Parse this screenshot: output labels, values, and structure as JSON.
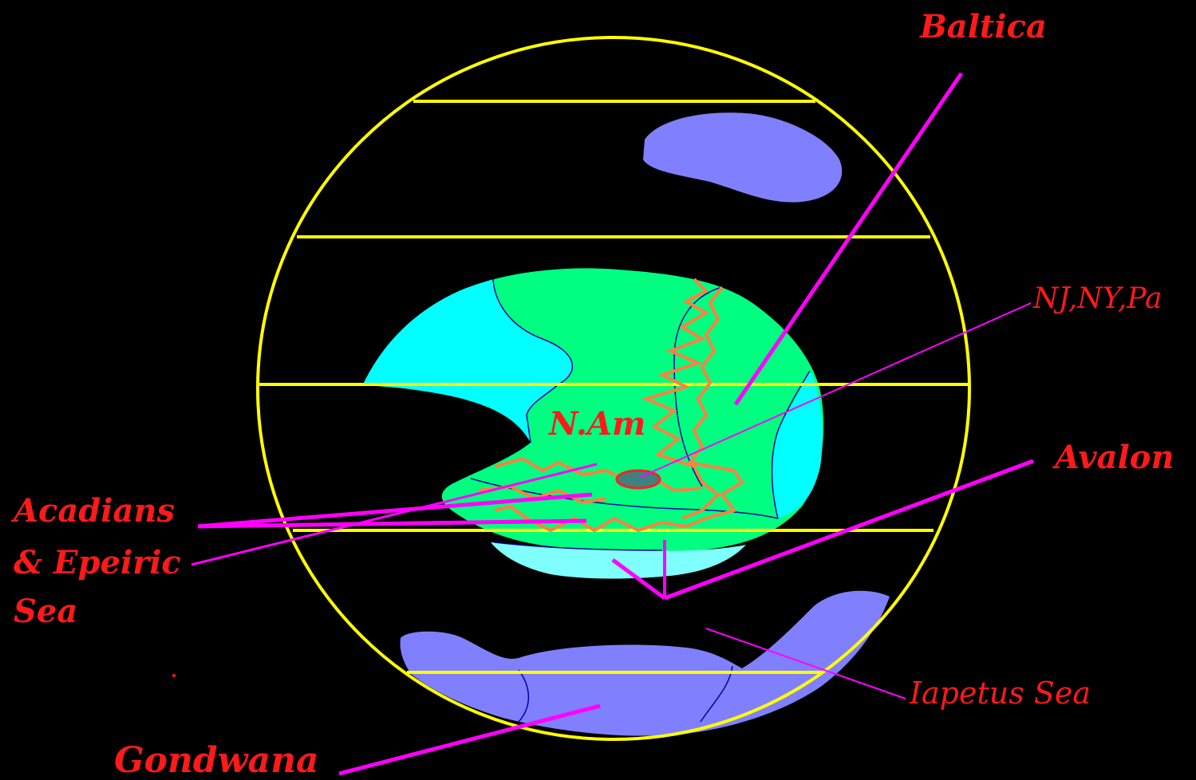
{
  "labels": {
    "baltica": "Baltica",
    "nj_ny_pa": "NJ,NY,Pa",
    "avalon": "Avalon",
    "n_am": "N.Am",
    "acadians_line1": "Acadians",
    "acadians_line2": "& Epeiric",
    "acadians_line3": "Sea",
    "iapetus_sea": "Iapetus Sea",
    "gondwana": "Gondwana"
  },
  "colors": {
    "background": "#000000",
    "globe_outline": "#ffff00",
    "latitude_lines": "#ffff00",
    "laurentia_land": "#00ff80",
    "shallow_sea": "#00ffff",
    "pale_shelf": "#80ffff",
    "other_continents": "#8080ff",
    "mountain_belt": "#ff8040",
    "leader_lines": "#ff00ff",
    "label_text": "#ff1a1a",
    "coastline": "#0000a0"
  }
}
